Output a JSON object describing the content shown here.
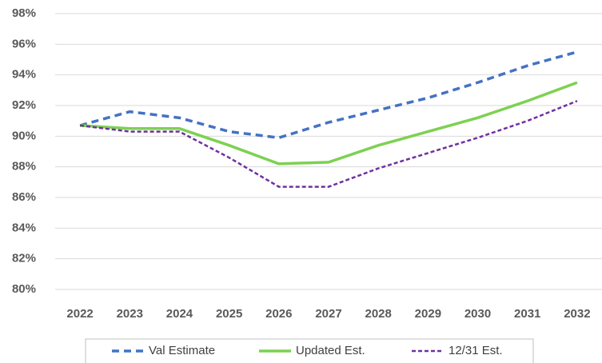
{
  "chart_data": {
    "type": "line",
    "x": [
      2022,
      2023,
      2024,
      2025,
      2026,
      2027,
      2028,
      2029,
      2030,
      2031,
      2032
    ],
    "xlim": [
      2021.5,
      2032.5
    ],
    "xticks": [
      2022,
      2023,
      2024,
      2025,
      2026,
      2027,
      2028,
      2029,
      2030,
      2031,
      2032
    ],
    "ylim": [
      80,
      98
    ],
    "yticks": [
      {
        "value": 80,
        "label": "80%"
      },
      {
        "value": 82,
        "label": "82%"
      },
      {
        "value": 84,
        "label": "84%"
      },
      {
        "value": 86,
        "label": "86%"
      },
      {
        "value": 88,
        "label": "88%"
      },
      {
        "value": 90,
        "label": "90%"
      },
      {
        "value": 92,
        "label": "92%"
      },
      {
        "value": 94,
        "label": "94%"
      },
      {
        "value": 96,
        "label": "96%"
      },
      {
        "value": 98,
        "label": "98%"
      }
    ],
    "grid": true,
    "legend": "bottom",
    "series": [
      {
        "name": "Val Estimate",
        "color": "#4472c4",
        "line_style": "dashed",
        "values": [
          90.7,
          91.6,
          91.2,
          90.3,
          89.9,
          90.9,
          91.7,
          92.5,
          93.5,
          94.6,
          95.5
        ]
      },
      {
        "name": "Updated Est.",
        "color": "#7dd152",
        "line_style": "solid",
        "values": [
          90.7,
          90.5,
          90.5,
          89.4,
          88.2,
          88.3,
          89.4,
          90.3,
          91.2,
          92.3,
          93.5
        ]
      },
      {
        "name": "12/31 Est.",
        "color": "#7030a0",
        "line_style": "dotted",
        "values": [
          90.7,
          90.3,
          90.3,
          88.6,
          86.7,
          86.7,
          87.9,
          88.9,
          89.9,
          91.0,
          92.3
        ]
      }
    ]
  }
}
